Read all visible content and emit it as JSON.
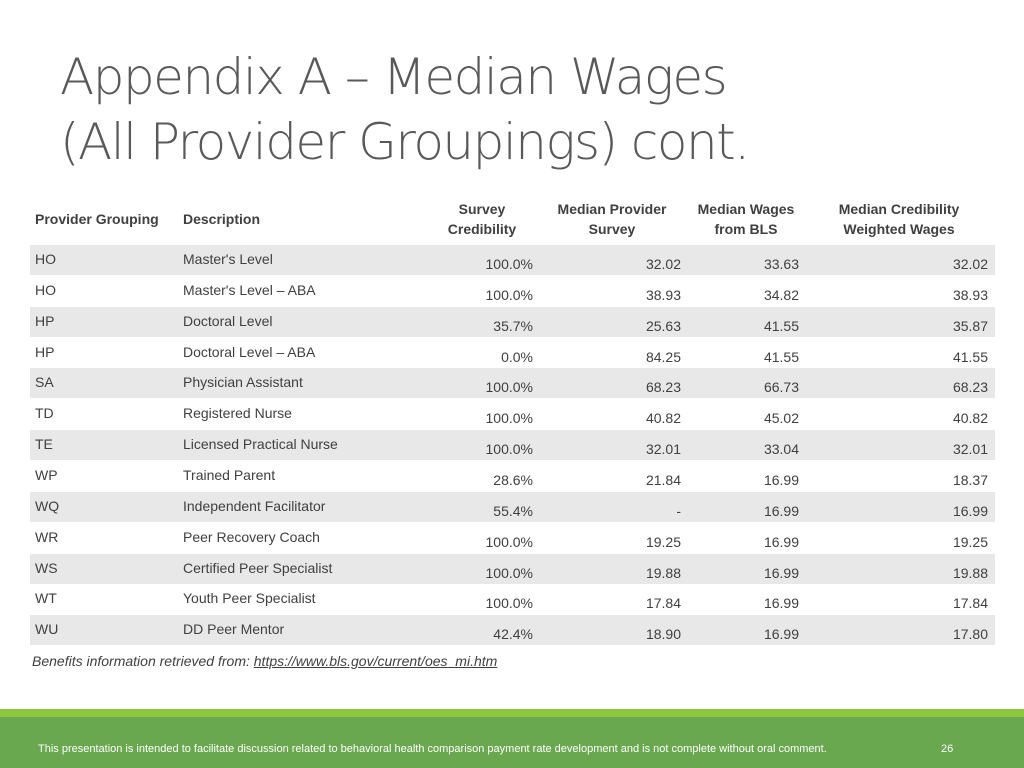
{
  "title": [
    "Appendix A – Median Wages",
    "(All Provider Groupings) cont."
  ],
  "table": {
    "headers": [
      [
        "Provider Grouping"
      ],
      [
        "Description"
      ],
      [
        "Survey",
        "Credibility"
      ],
      [
        "Median Provider",
        "Survey"
      ],
      [
        "Median Wages",
        "from BLS"
      ],
      [
        "Median Credibility",
        "Weighted Wages"
      ]
    ],
    "rows": [
      [
        "HO",
        "Master's Level",
        "100.0%",
        "32.02",
        "33.63",
        "32.02"
      ],
      [
        "HO",
        "Master's Level – ABA",
        "100.0%",
        "38.93",
        "34.82",
        "38.93"
      ],
      [
        "HP",
        "Doctoral Level",
        "35.7%",
        "25.63",
        "41.55",
        "35.87"
      ],
      [
        "HP",
        "Doctoral Level – ABA",
        "0.0%",
        "84.25",
        "41.55",
        "41.55"
      ],
      [
        "SA",
        "Physician Assistant",
        "100.0%",
        "68.23",
        "66.73",
        "68.23"
      ],
      [
        "TD",
        "Registered Nurse",
        "100.0%",
        "40.82",
        "45.02",
        "40.82"
      ],
      [
        "TE",
        "Licensed Practical Nurse",
        "100.0%",
        "32.01",
        "33.04",
        "32.01"
      ],
      [
        "WP",
        "Trained Parent",
        "28.6%",
        "21.84",
        "16.99",
        "18.37"
      ],
      [
        "WQ",
        "Independent Facilitator",
        "55.4%",
        "-",
        "16.99",
        "16.99"
      ],
      [
        "WR",
        "Peer Recovery Coach",
        "100.0%",
        "19.25",
        "16.99",
        "19.25"
      ],
      [
        "WS",
        "Certified Peer Specialist",
        "100.0%",
        "19.88",
        "16.99",
        "19.88"
      ],
      [
        "WT",
        "Youth Peer Specialist",
        "100.0%",
        "17.84",
        "16.99",
        "17.84"
      ],
      [
        "WU",
        "DD Peer Mentor",
        "42.4%",
        "18.90",
        "16.99",
        "17.80"
      ]
    ]
  },
  "note": {
    "text": "Benefits information retrieved from:",
    "link": "https://www.bls.gov/current/oes_mi.htm"
  },
  "footer": {
    "text": "This presentation is intended to facilitate discussion related to behavioral health comparison payment rate development and is not complete without oral comment.",
    "page": "26"
  }
}
